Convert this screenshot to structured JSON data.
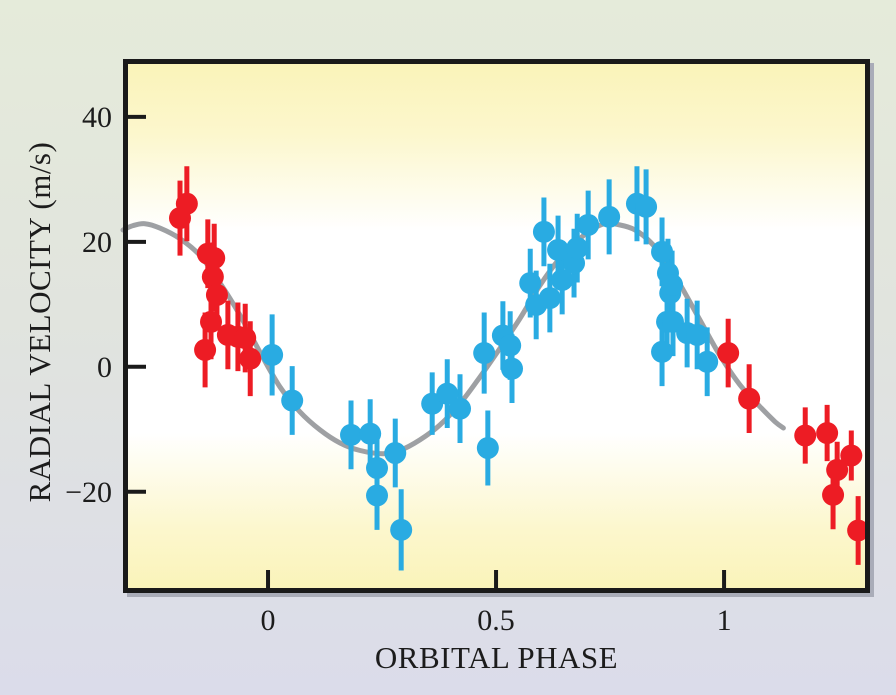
{
  "figure": {
    "x_axis_title": "ORBITAL PHASE",
    "y_axis_title": "RADIAL VELOCITY (m/s)"
  },
  "style": {
    "outer_background_top": "#e5ebda",
    "outer_background_bottom": "#dbdcea",
    "plot_yellow": "#faf3b8",
    "plot_yellow_soft": "#fcf7cd",
    "plot_white": "#ffffff",
    "frame_color": "#1a1a1a",
    "frame_shadow": "#a9acb8",
    "tick_color": "#1a1a1a",
    "text_color": "#1c1c1c",
    "curve_color": "#9ea0a3",
    "red_point_color": "#ed1c24",
    "blue_point_color": "#29abe2"
  },
  "chart_data": {
    "type": "scatter",
    "title": "",
    "xlabel": "ORBITAL PHASE",
    "ylabel": "RADIAL VELOCITY (m/s)",
    "xlim": [
      -0.318,
      1.32
    ],
    "ylim": [
      -36.2,
      49.1
    ],
    "grid": false,
    "legend": "none",
    "x_ticks": [
      {
        "value": 0,
        "label": "0"
      },
      {
        "value": 0.5,
        "label": "0.5"
      },
      {
        "value": 1,
        "label": "1"
      }
    ],
    "y_ticks": [
      {
        "value": 40,
        "label": "40"
      },
      {
        "value": 20,
        "label": "20"
      },
      {
        "value": 0,
        "label": "0"
      },
      {
        "value": -20,
        "label": "−20"
      }
    ],
    "series": [
      {
        "name": "observations-red",
        "marker": "circle-with-error-bar",
        "color": "#ed1c24",
        "points_format": [
          "phase",
          "rv_m_per_s",
          "err_m_per_s"
        ],
        "points": [
          [
            -0.193,
            23.8,
            6.0
          ],
          [
            -0.178,
            26.1,
            6.0
          ],
          [
            -0.138,
            2.7,
            6.0
          ],
          [
            -0.132,
            18.1,
            5.5
          ],
          [
            -0.125,
            7.2,
            6.0
          ],
          [
            -0.121,
            14.4,
            5.5
          ],
          [
            -0.118,
            17.4,
            5.5
          ],
          [
            -0.112,
            11.5,
            5.5
          ],
          [
            -0.088,
            5.1,
            5.5
          ],
          [
            -0.066,
            4.8,
            5.5
          ],
          [
            -0.05,
            4.6,
            5.5
          ],
          [
            -0.039,
            1.3,
            6.0
          ],
          [
            1.009,
            2.2,
            5.5
          ],
          [
            1.055,
            -5.1,
            5.5
          ],
          [
            1.178,
            -11.0,
            4.5
          ],
          [
            1.226,
            -10.6,
            4.5
          ],
          [
            1.239,
            -20.5,
            5.5
          ],
          [
            1.248,
            -16.5,
            4.5
          ],
          [
            1.279,
            -14.2,
            4.0
          ],
          [
            1.294,
            -26.2,
            5.5
          ]
        ]
      },
      {
        "name": "observations-blue",
        "marker": "circle-with-error-bar",
        "color": "#29abe2",
        "points_format": [
          "phase",
          "rv_m_per_s",
          "err_m_per_s"
        ],
        "points": [
          [
            0.009,
            1.9,
            6.5
          ],
          [
            0.053,
            -5.4,
            5.5
          ],
          [
            0.182,
            -10.9,
            5.5
          ],
          [
            0.224,
            -10.7,
            5.5
          ],
          [
            0.239,
            -16.2,
            5.0
          ],
          [
            0.239,
            -20.6,
            5.5
          ],
          [
            0.279,
            -13.8,
            5.5
          ],
          [
            0.292,
            -26.1,
            6.5
          ],
          [
            0.36,
            -5.9,
            5.0
          ],
          [
            0.393,
            -4.3,
            5.5
          ],
          [
            0.421,
            -6.7,
            5.5
          ],
          [
            0.474,
            2.2,
            6.5
          ],
          [
            0.482,
            -13.0,
            6.0
          ],
          [
            0.515,
            5.0,
            5.5
          ],
          [
            0.531,
            3.4,
            5.5
          ],
          [
            0.535,
            -0.3,
            5.5
          ],
          [
            0.575,
            13.4,
            5.5
          ],
          [
            0.588,
            9.9,
            5.5
          ],
          [
            0.605,
            21.6,
            5.5
          ],
          [
            0.618,
            11.0,
            5.5
          ],
          [
            0.636,
            18.7,
            5.5
          ],
          [
            0.645,
            13.9,
            5.5
          ],
          [
            0.671,
            16.6,
            5.5
          ],
          [
            0.678,
            19.0,
            5.5
          ],
          [
            0.702,
            22.7,
            5.5
          ],
          [
            0.748,
            24.0,
            6.0
          ],
          [
            0.809,
            26.1,
            6.0
          ],
          [
            0.829,
            25.6,
            6.0
          ],
          [
            0.864,
            18.4,
            5.5
          ],
          [
            0.864,
            2.4,
            5.5
          ],
          [
            0.875,
            7.2,
            5.5
          ],
          [
            0.877,
            15.0,
            5.5
          ],
          [
            0.882,
            11.8,
            5.5
          ],
          [
            0.886,
            13.1,
            5.5
          ],
          [
            0.888,
            7.2,
            5.5
          ],
          [
            0.919,
            5.4,
            5.5
          ],
          [
            0.941,
            5.1,
            5.5
          ],
          [
            0.963,
            0.8,
            5.5
          ]
        ]
      }
    ],
    "model_curve": {
      "name": "best-fit-orbit-model",
      "color": "#9ea0a3",
      "points_format": [
        "phase",
        "rv_m_per_s"
      ],
      "points": [
        [
          -0.318,
          21.9
        ],
        [
          -0.296,
          22.6
        ],
        [
          -0.27,
          22.9
        ],
        [
          -0.237,
          22.2
        ],
        [
          -0.193,
          20.5
        ],
        [
          -0.149,
          17.8
        ],
        [
          -0.105,
          13.4
        ],
        [
          -0.061,
          8.2
        ],
        [
          -0.018,
          2.4
        ],
        [
          0.026,
          -3.2
        ],
        [
          0.07,
          -7.2
        ],
        [
          0.114,
          -10.1
        ],
        [
          0.158,
          -12.2
        ],
        [
          0.202,
          -13.4
        ],
        [
          0.252,
          -13.9
        ],
        [
          0.289,
          -13.4
        ],
        [
          0.333,
          -11.7
        ],
        [
          0.377,
          -9.3
        ],
        [
          0.421,
          -5.9
        ],
        [
          0.465,
          -1.6
        ],
        [
          0.509,
          3.0
        ],
        [
          0.553,
          7.8
        ],
        [
          0.596,
          13.0
        ],
        [
          0.64,
          17.4
        ],
        [
          0.673,
          19.8
        ],
        [
          0.706,
          21.8
        ],
        [
          0.739,
          22.9
        ],
        [
          0.772,
          22.7
        ],
        [
          0.805,
          21.9
        ],
        [
          0.838,
          20.0
        ],
        [
          0.871,
          17.1
        ],
        [
          0.904,
          13.1
        ],
        [
          0.947,
          7.5
        ],
        [
          0.991,
          1.8
        ],
        [
          1.035,
          -2.9
        ],
        [
          1.079,
          -6.4
        ],
        [
          1.112,
          -8.8
        ],
        [
          1.13,
          -9.8
        ]
      ]
    }
  }
}
